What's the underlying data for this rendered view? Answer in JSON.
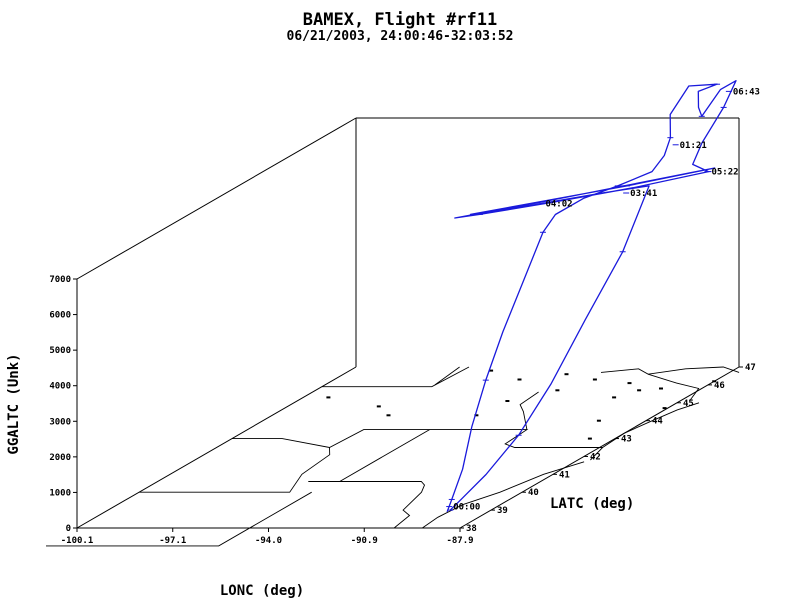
{
  "chart_data": {
    "type": "line",
    "title": "BAMEX, Flight #rf11",
    "subtitle": "06/21/2003, 24:00:46-32:03:52",
    "xlabel": "LONC (deg)",
    "ylabel": "GGALTC (Unk)",
    "zlabel": "LATC (deg)",
    "x_ticks": [
      "-100.1",
      "-97.1",
      "-94.0",
      "-90.9",
      "-87.9"
    ],
    "y_ticks": [
      "0",
      "1000",
      "2000",
      "3000",
      "4000",
      "5000",
      "6000",
      "7000"
    ],
    "z_ticks": [
      "38",
      "39",
      "40",
      "41",
      "42",
      "43",
      "44",
      "45",
      "46",
      "47"
    ],
    "xlim": [
      -100.1,
      -87.9
    ],
    "ylim": [
      0,
      7000
    ],
    "zlim": [
      38,
      47
    ],
    "series_color": "#1a1adc",
    "annotations": [
      {
        "label": "00:00",
        "lon": -89.1,
        "lat": 38.9,
        "alt": 150
      },
      {
        "label": "01:21",
        "lon": -88.8,
        "lat": 45.9,
        "alt": 6800
      },
      {
        "label": "06:43",
        "lon": -87.5,
        "lat": 46.3,
        "alt": 8100
      },
      {
        "label": "05:22",
        "lon": -86.7,
        "lat": 44.8,
        "alt": 6600
      },
      {
        "label": "03:41",
        "lon": -88.5,
        "lat": 44.0,
        "alt": 6400
      },
      {
        "label": "04:02",
        "lon": -91.0,
        "lat": 43.8,
        "alt": 6200
      }
    ],
    "series": [
      {
        "points": [
          [
            -89.2,
            38.9,
            0
          ],
          [
            -89.15,
            39.0,
            300
          ],
          [
            -89.1,
            39.3,
            1000
          ],
          [
            -89.2,
            39.7,
            2000
          ],
          [
            -89.35,
            40.3,
            3000
          ],
          [
            -89.5,
            41.0,
            4000
          ],
          [
            -89.65,
            41.8,
            5000
          ],
          [
            -89.8,
            42.6,
            6000
          ],
          [
            -89.8,
            43.0,
            6300
          ],
          [
            -89.4,
            43.5,
            6500
          ],
          [
            -88.8,
            44.0,
            6600
          ],
          [
            -88.3,
            44.6,
            6700
          ],
          [
            -88.6,
            45.3,
            6800
          ],
          [
            -89.0,
            45.9,
            7000
          ],
          [
            -89.5,
            46.4,
            7400
          ],
          [
            -89.3,
            46.8,
            8000
          ],
          [
            -88.5,
            46.9,
            8000
          ],
          [
            -88.9,
            46.7,
            7900
          ],
          [
            -88.4,
            46.2,
            7700
          ],
          [
            -88.0,
            45.9,
            7600
          ],
          [
            -87.9,
            46.4,
            8100
          ],
          [
            -87.7,
            46.7,
            8200
          ],
          [
            -87.6,
            46.2,
            7700
          ],
          [
            -87.7,
            45.6,
            7000
          ],
          [
            -87.4,
            45.0,
            6700
          ],
          [
            -86.7,
            44.8,
            6600
          ],
          [
            -88.5,
            44.2,
            6450
          ],
          [
            -90.5,
            43.7,
            6300
          ],
          [
            -92.5,
            43.3,
            6150
          ],
          [
            -93.2,
            43.2,
            6100
          ],
          [
            -91.0,
            43.8,
            6250
          ],
          [
            -89.0,
            44.4,
            6400
          ],
          [
            -87.2,
            44.9,
            6550
          ],
          [
            -86.7,
            45.0,
            6600
          ],
          [
            -88.8,
            44.3,
            6450
          ],
          [
            -90.8,
            43.8,
            6300
          ],
          [
            -92.8,
            43.3,
            6150
          ],
          [
            -91.2,
            43.6,
            6250
          ],
          [
            -89.3,
            44.0,
            6400
          ],
          [
            -88.0,
            44.2,
            6500
          ],
          [
            -88.15,
            43.5,
            5000
          ],
          [
            -88.35,
            42.5,
            3600
          ],
          [
            -88.45,
            41.5,
            2300
          ],
          [
            -88.6,
            40.6,
            1300
          ],
          [
            -88.85,
            39.8,
            600
          ],
          [
            -89.05,
            39.2,
            200
          ],
          [
            -89.1,
            38.9,
            50
          ]
        ]
      }
    ]
  }
}
